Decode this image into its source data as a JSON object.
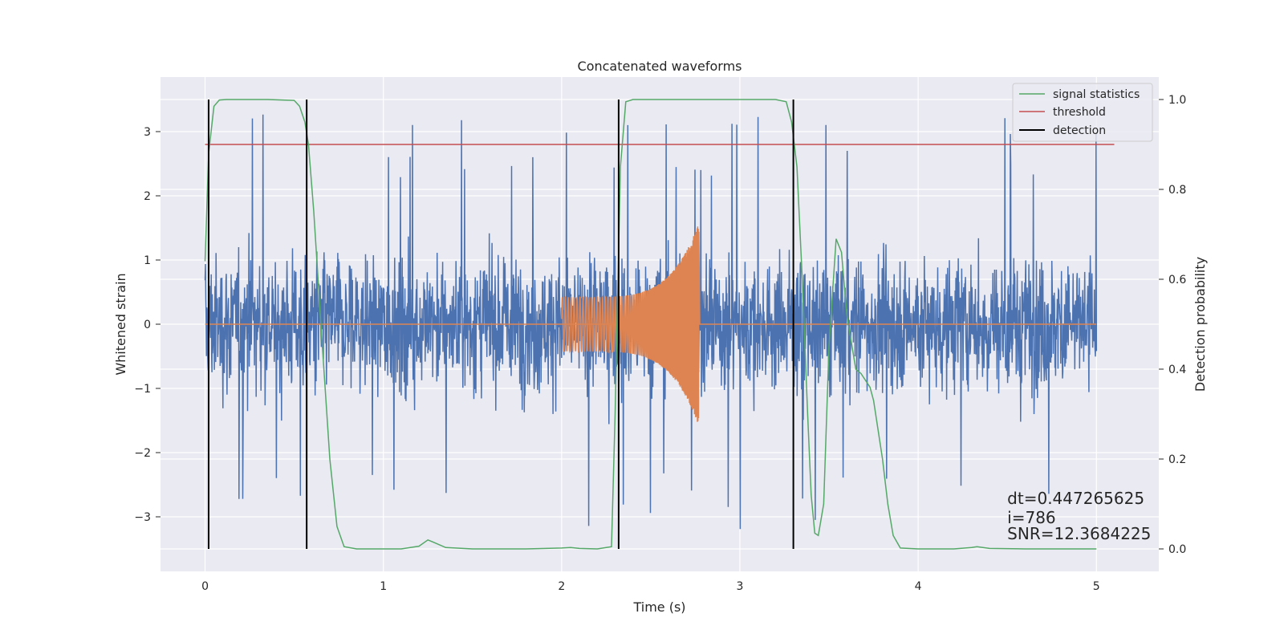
{
  "chart_data": {
    "type": "line",
    "title": "Concatenated waveforms",
    "xlabel": "Time (s)",
    "ylabel": "Whitened strain",
    "y2label": "Detection probability",
    "xlim": [
      -0.25,
      5.35
    ],
    "ylim": [
      -3.85,
      3.85
    ],
    "y2lim": [
      -0.05,
      1.05
    ],
    "grid": true,
    "x_ticks": [
      0,
      1,
      2,
      3,
      4,
      5
    ],
    "x_tick_labels": [
      "0",
      "1",
      "2",
      "3",
      "4",
      "5"
    ],
    "y_ticks": [
      -3,
      -2,
      -1,
      0,
      1,
      2,
      3
    ],
    "y_tick_labels": [
      "−3",
      "−2",
      "−1",
      "0",
      "1",
      "2",
      "3"
    ],
    "y2_ticks": [
      0.0,
      0.2,
      0.4,
      0.6,
      0.8,
      1.0
    ],
    "y2_tick_labels": [
      "0.0",
      "0.2",
      "0.4",
      "0.6",
      "0.8",
      "1.0"
    ],
    "legend_position": "top-right",
    "legend": [
      {
        "label": "signal statistics",
        "color": "#55a868"
      },
      {
        "label": "threshold",
        "color": "#c44e52"
      },
      {
        "label": "detection",
        "color": "#000000"
      }
    ],
    "series": [
      {
        "color": "#4c72b0",
        "kind": "noise",
        "x_range": [
          0,
          5
        ],
        "amplitude_typical": 1.6,
        "amplitude_max": 3.3
      },
      {
        "color": "#dd8452",
        "kind": "chirp",
        "x_range": [
          2.0,
          2.77
        ],
        "amplitude_start": 0.42,
        "amplitude_peak": 1.58,
        "baseline_x_range": [
          0,
          5
        ],
        "baseline_value": 0
      },
      {
        "name": "signal statistics",
        "axis": "right",
        "color": "#55a868",
        "x": [
          0.0,
          0.02,
          0.05,
          0.08,
          0.12,
          0.2,
          0.35,
          0.5,
          0.53,
          0.56,
          0.58,
          0.61,
          0.65,
          0.7,
          0.74,
          0.78,
          0.85,
          1.0,
          1.1,
          1.2,
          1.25,
          1.28,
          1.35,
          1.5,
          1.8,
          2.0,
          2.05,
          2.1,
          2.2,
          2.28,
          2.3,
          2.33,
          2.36,
          2.4,
          2.5,
          3.0,
          3.2,
          3.26,
          3.29,
          3.32,
          3.35,
          3.38,
          3.4,
          3.42,
          3.44,
          3.47,
          3.5,
          3.54,
          3.57,
          3.6,
          3.65,
          3.68,
          3.73,
          3.75,
          3.8,
          3.83,
          3.86,
          3.9,
          4.0,
          4.2,
          4.3,
          4.33,
          4.4,
          4.6,
          5.0
        ],
        "y": [
          0.64,
          0.88,
          0.985,
          0.999,
          1.0,
          1.0,
          1.0,
          0.998,
          0.985,
          0.95,
          0.9,
          0.75,
          0.5,
          0.2,
          0.05,
          0.005,
          0.0,
          0.0,
          0.0,
          0.006,
          0.02,
          0.015,
          0.003,
          0.0,
          0.0,
          0.002,
          0.003,
          0.001,
          0.0,
          0.005,
          0.3,
          0.85,
          0.995,
          1.0,
          1.0,
          1.0,
          1.0,
          0.995,
          0.95,
          0.85,
          0.6,
          0.3,
          0.12,
          0.035,
          0.03,
          0.1,
          0.45,
          0.69,
          0.66,
          0.52,
          0.4,
          0.39,
          0.36,
          0.33,
          0.2,
          0.1,
          0.03,
          0.002,
          0.0,
          0.0,
          0.003,
          0.005,
          0.001,
          0.0,
          0.0
        ]
      },
      {
        "name": "threshold",
        "axis": "right",
        "color": "#c44e52",
        "x": [
          0.0,
          5.1
        ],
        "y": [
          0.9,
          0.9
        ]
      }
    ],
    "detections": {
      "color": "#000000",
      "x": [
        0.02,
        0.57,
        2.32,
        3.3
      ]
    },
    "annotations": [
      {
        "text": "dt=0.447265625",
        "x": 4.5,
        "y": -2.8
      },
      {
        "text": " i=786",
        "x": 4.5,
        "y": -3.1
      },
      {
        "text": "SNR=12.3684225",
        "x": 4.5,
        "y": -3.35
      }
    ]
  }
}
